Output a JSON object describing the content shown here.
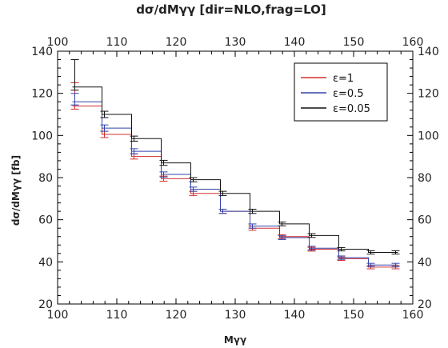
{
  "chart_data": {
    "type": "line",
    "title": "dσ/dMγγ [dir=NLO,frag=LO]",
    "xlabel": "Mγγ",
    "ylabel": "dσ/dMγγ [fb]",
    "xlim": [
      100,
      160
    ],
    "ylim": [
      20,
      140
    ],
    "x_ticks": [
      100,
      110,
      120,
      130,
      140,
      150,
      160
    ],
    "y_ticks": [
      20,
      40,
      60,
      80,
      100,
      120,
      140
    ],
    "bin_edges": [
      102.5,
      107.5,
      112.5,
      117.5,
      122.5,
      127.5,
      132.5,
      137.5,
      142.5,
      147.5,
      152.5,
      157.5
    ],
    "legend_position": "top-right",
    "series": [
      {
        "name": "ε=1",
        "color": "#d03030",
        "values": [
          114,
          100.5,
          90,
          79.5,
          72.5,
          64,
          56,
          52,
          46,
          41.5,
          37.5
        ],
        "errors": [
          1.5,
          1.5,
          1.2,
          1.2,
          1.0,
          1.0,
          1.0,
          0.9,
          0.9,
          0.8,
          0.8
        ],
        "first_error": 11
      },
      {
        "name": "ε=0.5",
        "color": "#3344aa",
        "values": [
          116,
          103.5,
          92.5,
          81.5,
          74.5,
          64,
          57,
          51.5,
          46.5,
          42,
          38.5
        ],
        "errors": [
          1.5,
          1.5,
          1.2,
          1.2,
          1.0,
          1.0,
          1.0,
          0.9,
          0.9,
          0.8,
          0.8
        ],
        "first_error": 4
      },
      {
        "name": "ε=0.05",
        "color": "#111111",
        "values": [
          123,
          110,
          98.5,
          87,
          79,
          72.5,
          64,
          58,
          52.5,
          46,
          44.5
        ],
        "errors": [
          1.5,
          1.5,
          1.2,
          1.2,
          1.0,
          1.0,
          1.0,
          0.9,
          0.9,
          0.8,
          0.8
        ],
        "first_error": 13
      }
    ]
  }
}
